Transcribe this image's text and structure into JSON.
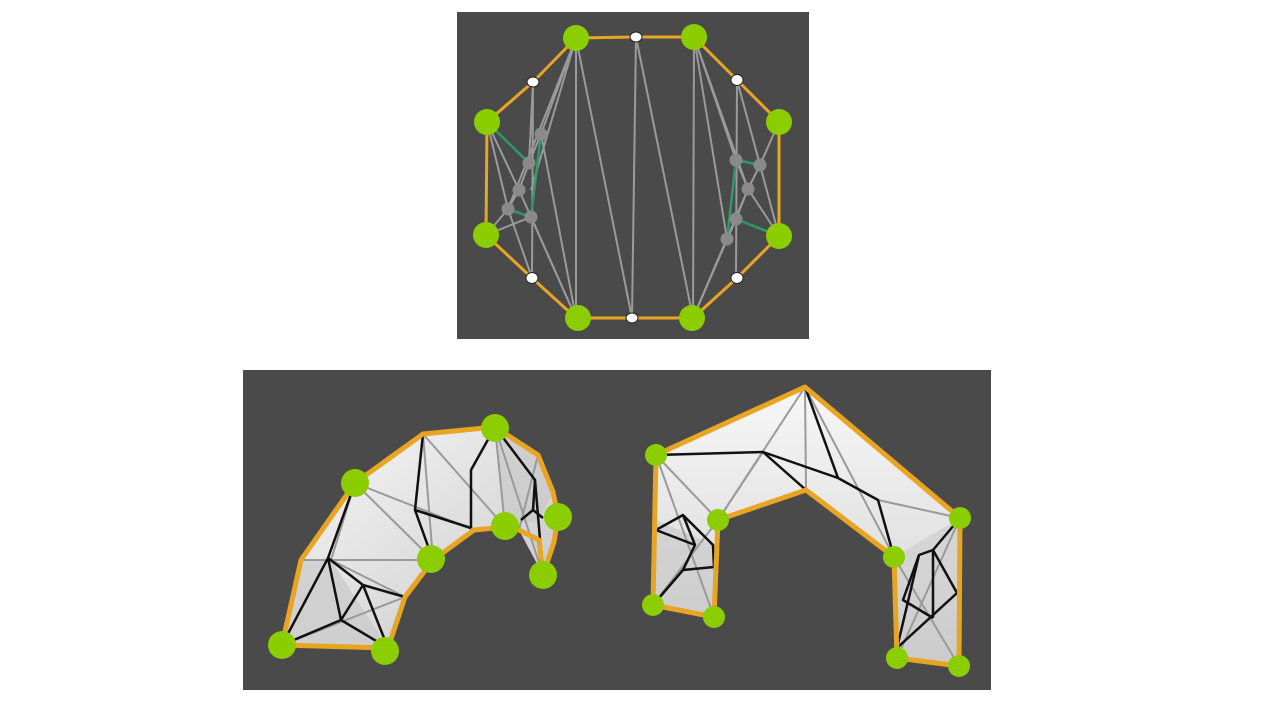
{
  "colors": {
    "background": "#ffffff",
    "panel": "#4a4a4a",
    "boundary": "#e8a423",
    "corner_vertex": "#8ccd00",
    "midpoint_vertex": "#ffffff",
    "interior_vertex": "#8a8a8a",
    "mesh_edge": "#9a9a9a",
    "highlight_edge": "#2e9a6a",
    "fold_edge": "#111111",
    "surface_light": "#f4f4f4",
    "surface_shade": "#c4c4c4"
  },
  "figures": [
    {
      "name": "flat-polygon-mesh",
      "icon": "none"
    },
    {
      "name": "folded-arch-surface",
      "icon": "none"
    },
    {
      "name": "folded-gate-surface",
      "icon": "none"
    }
  ]
}
